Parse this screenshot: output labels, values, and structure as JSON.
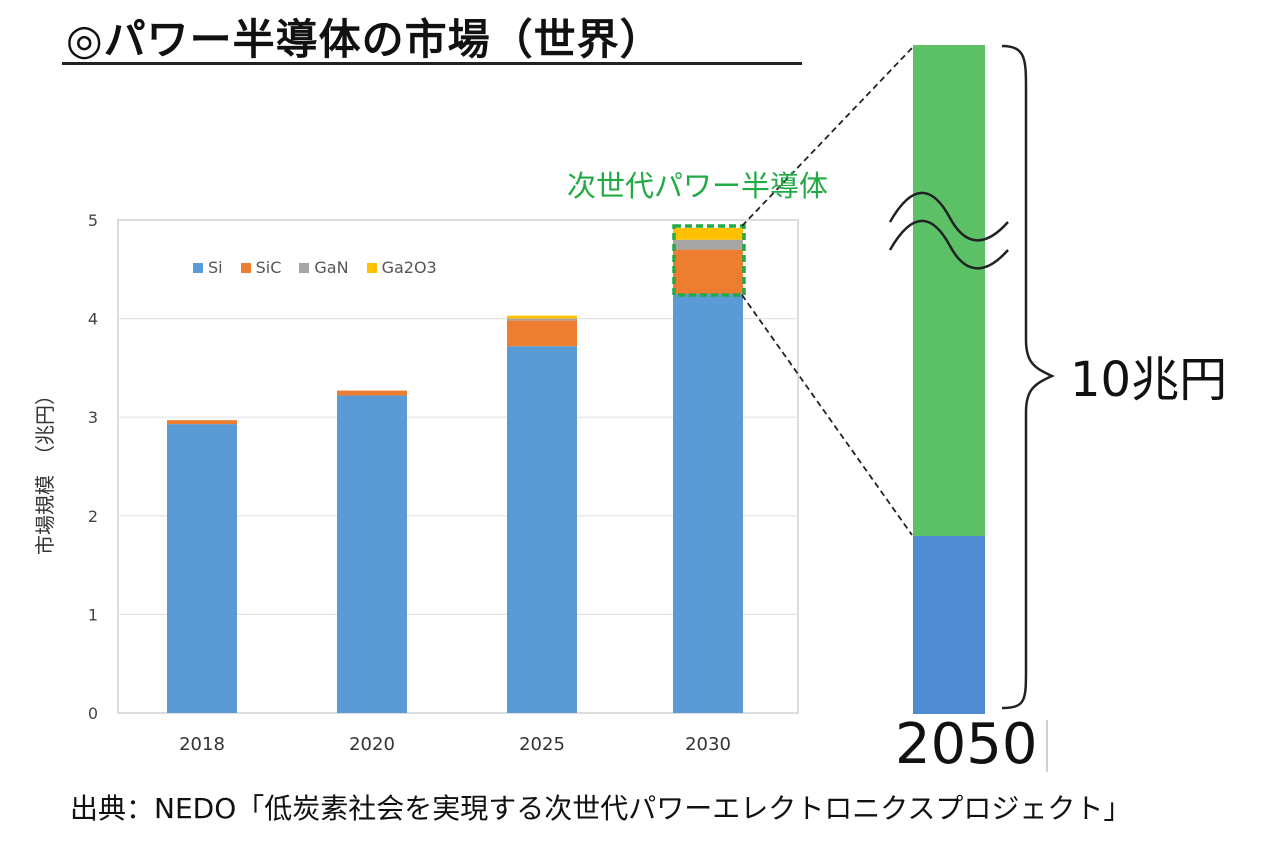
{
  "title": "◎パワー半導体の市場（世界）",
  "callout": "次世代パワー半導体",
  "right_bar": {
    "label": "10兆円",
    "year": "2050",
    "colors": {
      "lower": "#4f8bd1",
      "upper": "#5cc066"
    }
  },
  "source": "出典：NEDO「低炭素社会を実現する次世代パワーエレクトロニクスプロジェクト」",
  "colors": {
    "Si": "#5b9bd5",
    "SiC": "#ed7d31",
    "GaN": "#a5a5a5",
    "Ga2O3": "#ffc000",
    "callout": "#22aa44"
  },
  "chart_data": {
    "type": "bar",
    "stacked": true,
    "categories": [
      "2018",
      "2020",
      "2025",
      "2030"
    ],
    "series": [
      {
        "name": "Si",
        "values": [
          2.93,
          3.22,
          3.72,
          4.25
        ]
      },
      {
        "name": "SiC",
        "values": [
          0.04,
          0.05,
          0.26,
          0.45
        ]
      },
      {
        "name": "GaN",
        "values": [
          0.0,
          0.0,
          0.02,
          0.1
        ]
      },
      {
        "name": "Ga2O3",
        "values": [
          0.0,
          0.0,
          0.03,
          0.12
        ]
      }
    ],
    "ylabel": "市場規模　（兆円）",
    "yticks": [
      "0",
      "1",
      "2",
      "3",
      "4",
      "5"
    ],
    "ylim": [
      0,
      5
    ],
    "grid": true,
    "legend_position": "top-left"
  }
}
